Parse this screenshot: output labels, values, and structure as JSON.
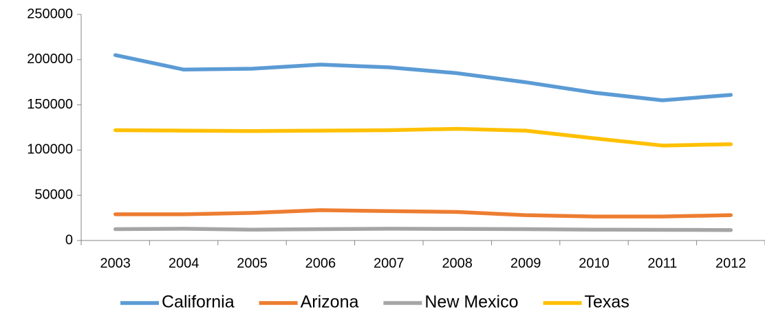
{
  "chart_data": {
    "type": "line",
    "categories": [
      "2003",
      "2004",
      "2005",
      "2006",
      "2007",
      "2008",
      "2009",
      "2010",
      "2011",
      "2012"
    ],
    "series": [
      {
        "name": "California",
        "color": "#5b9bd5",
        "values": [
          205000,
          189000,
          190000,
          194500,
          191500,
          185000,
          175000,
          163500,
          155000,
          161000
        ]
      },
      {
        "name": "Arizona",
        "color": "#ed7d31",
        "values": [
          29000,
          29000,
          30500,
          33500,
          32500,
          31500,
          28000,
          26500,
          26500,
          28000
        ]
      },
      {
        "name": "New Mexico",
        "color": "#a5a5a5",
        "values": [
          12500,
          13000,
          12000,
          12500,
          13000,
          12800,
          12500,
          12000,
          11800,
          11500
        ]
      },
      {
        "name": "Texas",
        "color": "#ffc000",
        "values": [
          122000,
          121500,
          121000,
          121500,
          122000,
          123500,
          121500,
          113000,
          105000,
          106500
        ]
      }
    ],
    "ylim": [
      0,
      250000
    ],
    "yticks": [
      0,
      50000,
      100000,
      150000,
      200000,
      250000
    ],
    "legend": "bottom"
  }
}
